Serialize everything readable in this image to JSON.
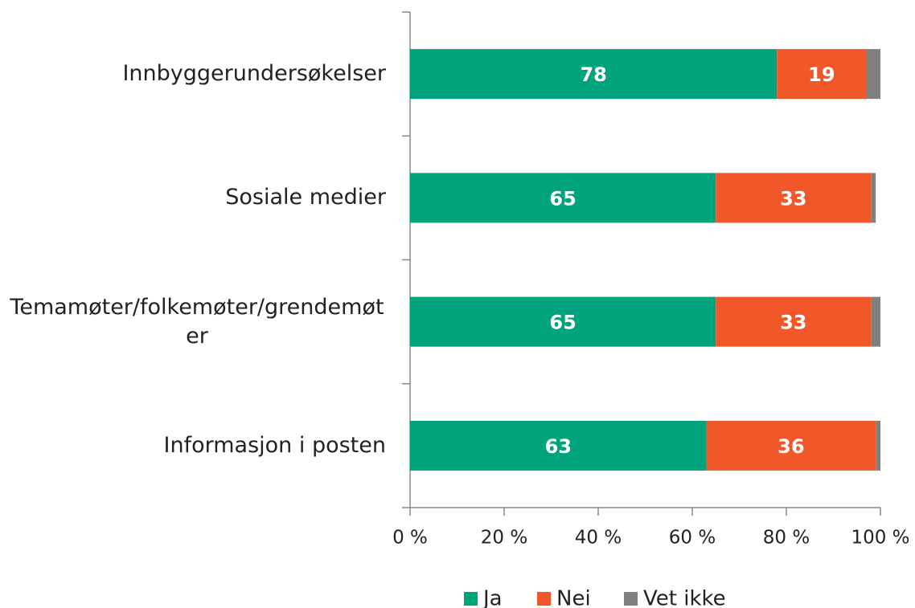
{
  "chart_data": {
    "type": "stacked_barh",
    "categories": [
      "Innbyggerundersøkelser",
      "Sosiale medier",
      "Temamøter/folkemøter/grendemøter",
      "Informasjon i posten"
    ],
    "series": [
      {
        "name": "Ja",
        "color": "#00a47c",
        "values": [
          78,
          65,
          65,
          63
        ],
        "data_labels": true
      },
      {
        "name": "Nei",
        "color": "#f0582a",
        "values": [
          19,
          33,
          33,
          36
        ],
        "data_labels": true
      },
      {
        "name": "Vet ikke",
        "color": "#808080",
        "values": [
          3,
          1,
          2,
          1
        ],
        "data_labels": false
      }
    ],
    "xlim": [
      0,
      100
    ],
    "xticks": [
      {
        "value": 0,
        "label": "0 %"
      },
      {
        "value": 20,
        "label": "20 %"
      },
      {
        "value": 40,
        "label": "40 %"
      },
      {
        "value": 60,
        "label": "60 %"
      },
      {
        "value": 80,
        "label": "80 %"
      },
      {
        "value": 100,
        "label": "100 %"
      }
    ],
    "legend": "bottom"
  }
}
